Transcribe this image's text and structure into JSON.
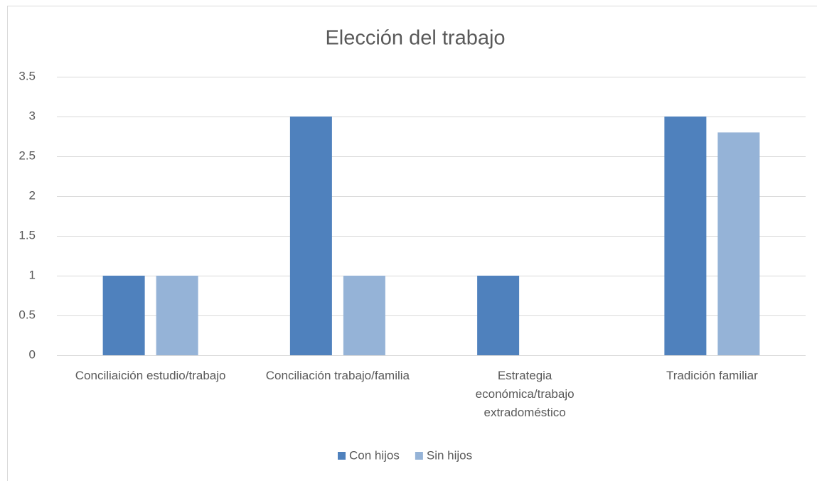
{
  "chart_data": {
    "type": "bar",
    "title": "Elección del trabajo",
    "categories": [
      "Conciliaición estudio/trabajo",
      "Conciliación trabajo/familia",
      "Estrategia económica/trabajo extradoméstico",
      "Tradición familiar"
    ],
    "series": [
      {
        "name": "Con hijos",
        "color": "#4f81bd",
        "values": [
          1,
          3,
          1,
          3
        ]
      },
      {
        "name": "Sin hijos",
        "color": "#95b3d7",
        "values": [
          1,
          1,
          0,
          2.8
        ]
      }
    ],
    "ylim": [
      0,
      3.5
    ],
    "yticks": [
      0,
      0.5,
      1,
      1.5,
      2,
      2.5,
      3,
      3.5
    ],
    "grid": true,
    "legend": "bottom"
  }
}
